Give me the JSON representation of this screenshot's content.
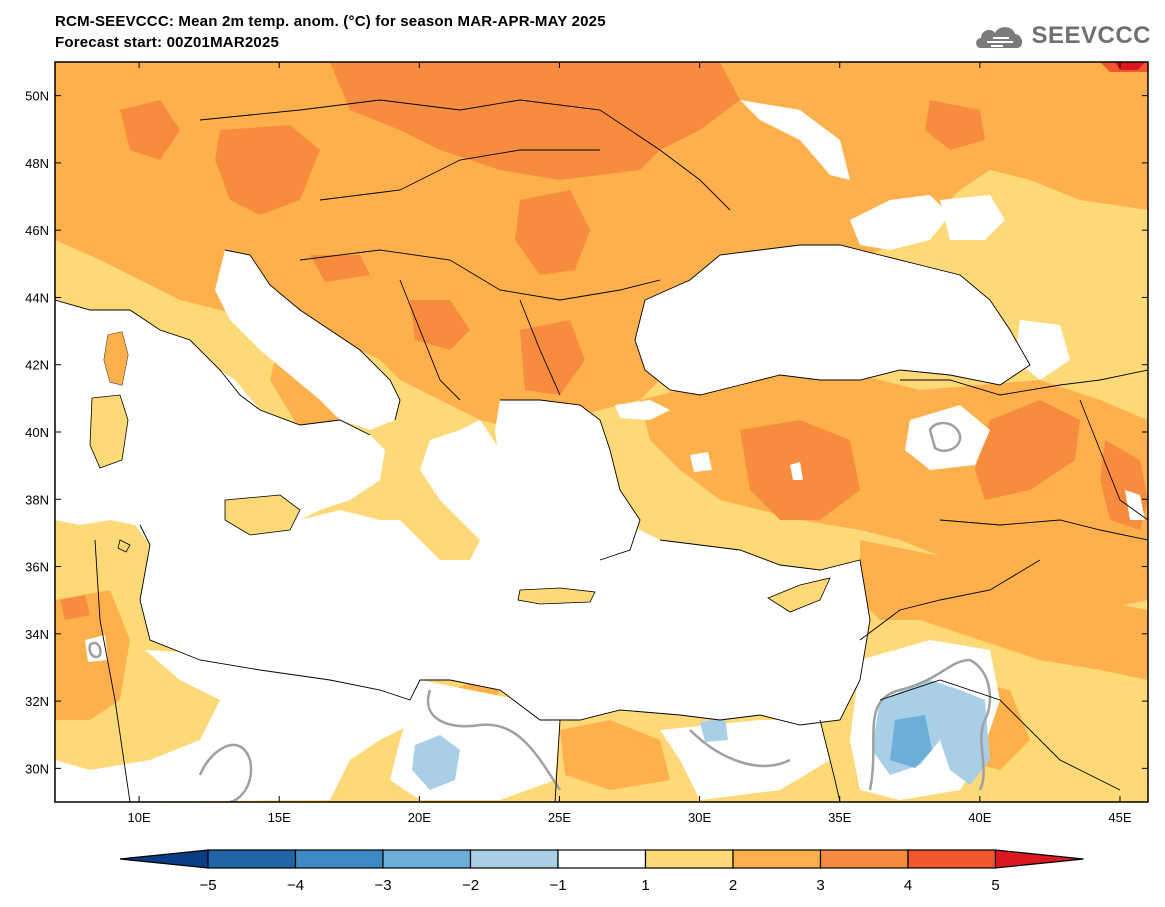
{
  "header": {
    "title_line1": "RCM-SEEVCCC: Mean 2m temp. anom. (°C) for season MAR-APR-MAY 2025",
    "title_line2": "Forecast start: 00Z01MAR2025"
  },
  "logo": {
    "text": "SEEVCCC",
    "icon": "cloud-logo-icon"
  },
  "map": {
    "lon_range": [
      7,
      46
    ],
    "lat_range": [
      29,
      51
    ],
    "lat_ticks": [
      {
        "value": 30,
        "label": "30N"
      },
      {
        "value": 32,
        "label": "32N"
      },
      {
        "value": 34,
        "label": "34N"
      },
      {
        "value": 36,
        "label": "36N"
      },
      {
        "value": 38,
        "label": "38N"
      },
      {
        "value": 40,
        "label": "40N"
      },
      {
        "value": 42,
        "label": "42N"
      },
      {
        "value": 44,
        "label": "44N"
      },
      {
        "value": 46,
        "label": "46N"
      },
      {
        "value": 48,
        "label": "48N"
      },
      {
        "value": 50,
        "label": "50N"
      }
    ],
    "lon_ticks": [
      {
        "value": 10,
        "label": "10E"
      },
      {
        "value": 15,
        "label": "15E"
      },
      {
        "value": 20,
        "label": "20E"
      },
      {
        "value": 25,
        "label": "25E"
      },
      {
        "value": 30,
        "label": "30E"
      },
      {
        "value": 35,
        "label": "35E"
      },
      {
        "value": 40,
        "label": "40E"
      },
      {
        "value": 45,
        "label": "45E"
      }
    ]
  },
  "colorbar": {
    "bins": [
      {
        "from": null,
        "to": -5,
        "color": "#083c85"
      },
      {
        "from": -5,
        "to": -4,
        "color": "#1f65a6"
      },
      {
        "from": -4,
        "to": -3,
        "color": "#3e89c3"
      },
      {
        "from": -3,
        "to": -2,
        "color": "#6caed8"
      },
      {
        "from": -2,
        "to": -1,
        "color": "#a8cfe6"
      },
      {
        "from": -1,
        "to": 1,
        "color": "#ffffff"
      },
      {
        "from": 1,
        "to": 2,
        "color": "#fed978"
      },
      {
        "from": 2,
        "to": 3,
        "color": "#fdb04b"
      },
      {
        "from": 3,
        "to": 4,
        "color": "#f88c3e"
      },
      {
        "from": 4,
        "to": 5,
        "color": "#f2572e"
      },
      {
        "from": 5,
        "to": null,
        "color": "#d9191f"
      }
    ],
    "labels": [
      "−5",
      "−4",
      "−3",
      "−2",
      "−1",
      "1",
      "2",
      "3",
      "4",
      "5"
    ]
  },
  "colors": {
    "anom_1_2": "#fed978",
    "anom_2_3": "#fdb04b",
    "anom_3_4": "#f88c3e",
    "anom_4_5": "#f2572e",
    "anom_gt5": "#d9191f",
    "anom_m1_m2": "#a8cfe6",
    "anom_m2_m3": "#6caed8",
    "contour_grey": "#a0a0a0",
    "sea": "#ffffff"
  }
}
